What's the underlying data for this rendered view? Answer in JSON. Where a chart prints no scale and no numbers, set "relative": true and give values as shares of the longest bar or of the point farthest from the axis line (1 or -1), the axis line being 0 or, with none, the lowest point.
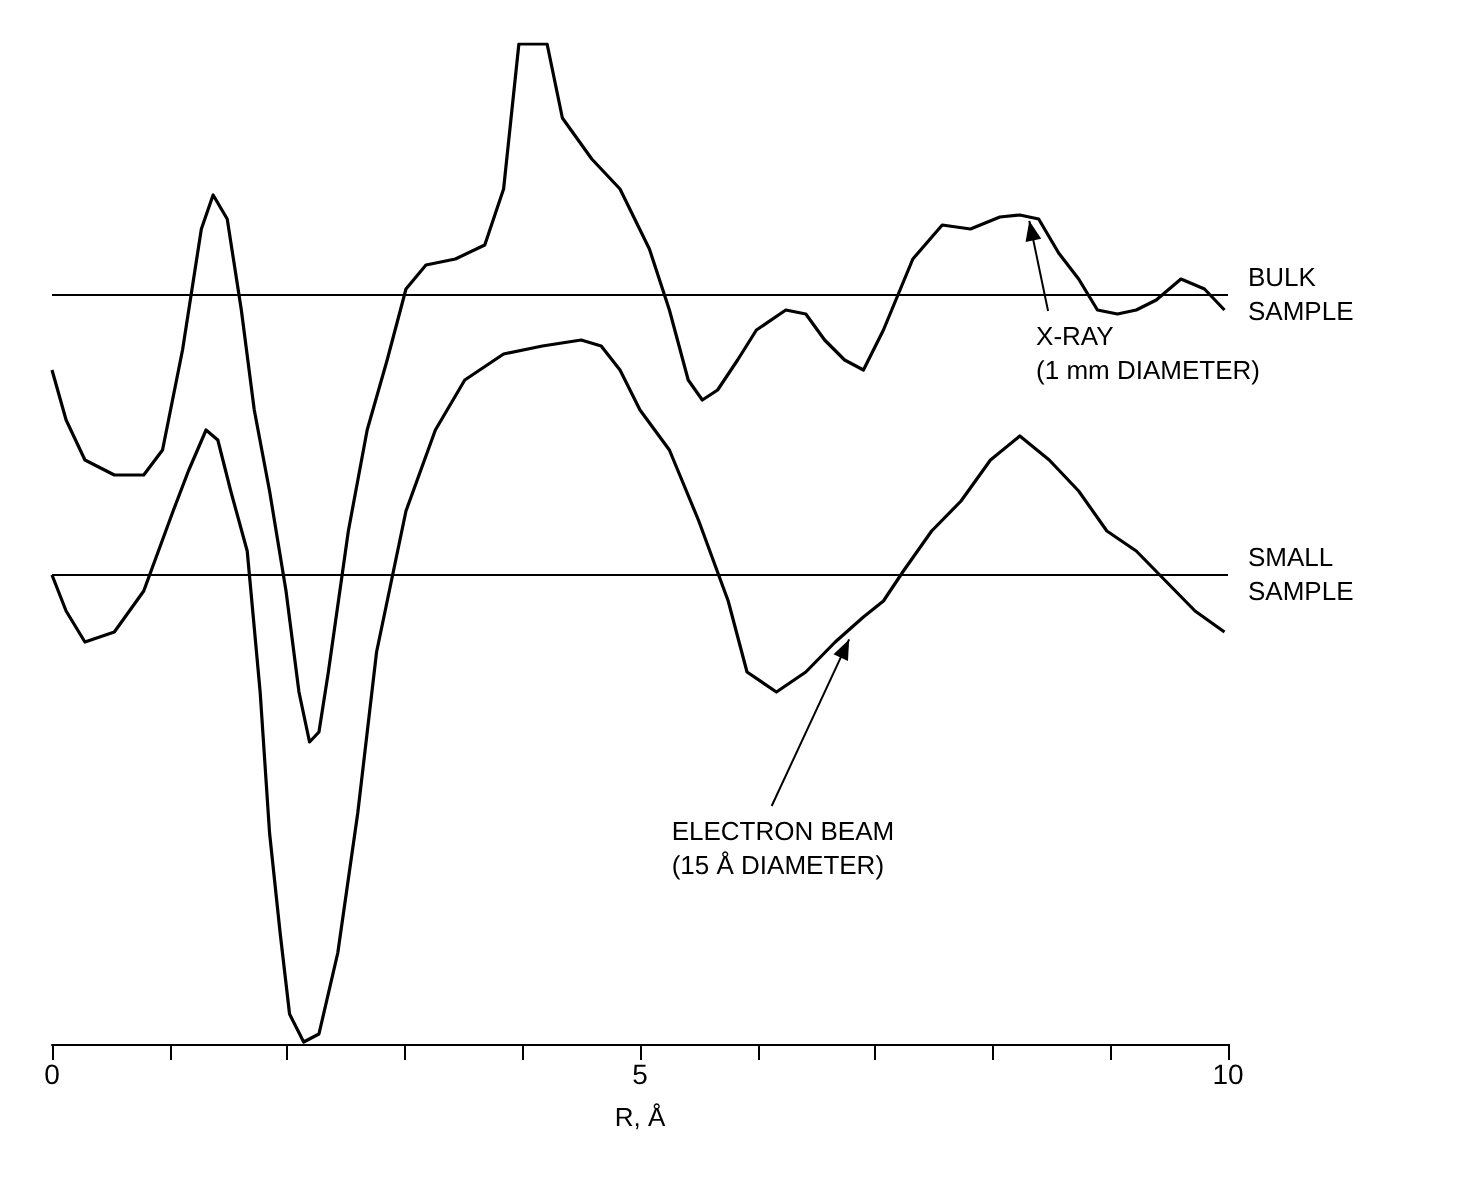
{
  "chart_data": {
    "type": "line",
    "relative": true,
    "xlabel": "R, Å",
    "xlim": [
      0,
      10
    ],
    "xticks": [
      0,
      {
        "value": 1,
        "label": null
      },
      {
        "value": 2,
        "label": null
      },
      {
        "value": 3,
        "label": null
      },
      {
        "value": 4,
        "label": null
      },
      5,
      {
        "value": 6,
        "label": null
      },
      {
        "value": 7,
        "label": null
      },
      {
        "value": 8,
        "label": null
      },
      {
        "value": 9,
        "label": null
      },
      10
    ],
    "tick_labels": "x",
    "grid": false,
    "marker": "none",
    "line_style": "solid",
    "series": [
      {
        "color": "#000000",
        "x": [
          0,
          0.12,
          0.28,
          0.53,
          0.78,
          0.94,
          1.11,
          1.27,
          1.37,
          1.49,
          1.61,
          1.72,
          1.85,
          1.99,
          2.1,
          2.19,
          2.27,
          2.35,
          2.52,
          2.68,
          2.85,
          3.01,
          3.18,
          3.43,
          3.68,
          3.84,
          3.97,
          4.21,
          4.34,
          4.59,
          4.83,
          5.08,
          5.25,
          5.41,
          5.53,
          5.66,
          5.83,
          5.99,
          6.24,
          6.41,
          6.57,
          6.74,
          6.9,
          7.07,
          7.32,
          7.57,
          7.81,
          8.06,
          8.23,
          8.39,
          8.56,
          8.73,
          8.89,
          9.06,
          9.22,
          9.39,
          9.6,
          9.8,
          9.97
        ],
        "values": [
          0.674,
          0.624,
          0.584,
          0.569,
          0.569,
          0.594,
          0.694,
          0.815,
          0.849,
          0.825,
          0.734,
          0.634,
          0.553,
          0.453,
          0.352,
          0.302,
          0.312,
          0.372,
          0.513,
          0.614,
          0.684,
          0.755,
          0.779,
          0.785,
          0.799,
          0.855,
          1.0,
          1.0,
          0.926,
          0.885,
          0.855,
          0.795,
          0.734,
          0.664,
          0.644,
          0.654,
          0.684,
          0.714,
          0.734,
          0.73,
          0.704,
          0.684,
          0.674,
          0.714,
          0.785,
          0.819,
          0.815,
          0.827,
          0.829,
          0.825,
          0.791,
          0.765,
          0.734,
          0.73,
          0.734,
          0.744,
          0.765,
          0.755,
          0.734
        ]
      },
      {
        "color": "#000000",
        "x": [
          0,
          0.12,
          0.28,
          0.53,
          0.78,
          1.03,
          1.16,
          1.31,
          1.41,
          1.52,
          1.66,
          1.77,
          1.85,
          1.94,
          2.02,
          2.14,
          2.27,
          2.43,
          2.6,
          2.76,
          3.01,
          3.26,
          3.51,
          3.84,
          4.17,
          4.5,
          4.67,
          4.83,
          5.0,
          5.25,
          5.5,
          5.75,
          5.91,
          6.16,
          6.41,
          6.66,
          6.9,
          7.07,
          7.24,
          7.48,
          7.73,
          7.98,
          8.23,
          8.48,
          8.73,
          8.97,
          9.22,
          9.47,
          9.72,
          9.97
        ],
        "values": [
          0.469,
          0.433,
          0.402,
          0.412,
          0.453,
          0.533,
          0.573,
          0.614,
          0.604,
          0.553,
          0.493,
          0.352,
          0.211,
          0.111,
          0.03,
          0.002,
          0.01,
          0.091,
          0.231,
          0.392,
          0.533,
          0.614,
          0.664,
          0.69,
          0.698,
          0.704,
          0.698,
          0.674,
          0.634,
          0.594,
          0.523,
          0.443,
          0.372,
          0.352,
          0.372,
          0.402,
          0.427,
          0.443,
          0.473,
          0.513,
          0.543,
          0.584,
          0.608,
          0.584,
          0.553,
          0.513,
          0.493,
          0.463,
          0.433,
          0.412
        ]
      }
    ],
    "ref_lines": [
      {
        "axis": "y",
        "value": 0.746,
        "label": "BULK SAMPLE",
        "color": "#000000"
      },
      {
        "axis": "y",
        "value": 0.471,
        "label": "SMALL SAMPLE",
        "color": "#000000"
      }
    ],
    "annotations": [
      {
        "text": "X-RAY (1 mm DIAMETER)",
        "x": 8.3,
        "y": 0.829
      },
      {
        "text": "ELECTRON BEAM (15 Å DIAMETER)",
        "x": 6.8,
        "y": 0.41
      }
    ]
  }
}
